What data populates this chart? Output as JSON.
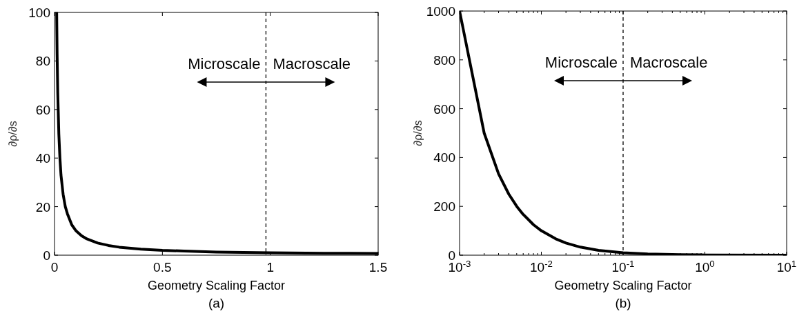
{
  "chart_data": [
    {
      "type": "line",
      "xlabel": "Geometry Scaling Factor",
      "ylabel": "∂ρ/∂s",
      "annotations": [
        "Microscale",
        "Macroscale",
        "(a)"
      ],
      "x": [
        0.01,
        0.012,
        0.015,
        0.02,
        0.025,
        0.03,
        0.04,
        0.05,
        0.06,
        0.08,
        0.1,
        0.125,
        0.15,
        0.2,
        0.25,
        0.3,
        0.4,
        0.5,
        0.6,
        0.75,
        1,
        1.25,
        1.5
      ],
      "series": [
        {
          "color": "#000000",
          "values": [
            100,
            83,
            67,
            50,
            40,
            33,
            25,
            20,
            17,
            12.5,
            10,
            8,
            6.7,
            5,
            4,
            3.3,
            2.5,
            2,
            1.7,
            1.3,
            1,
            0.8,
            0.7
          ]
        }
      ],
      "xlim": [
        0,
        1.5
      ],
      "xticks": [
        0,
        0.5,
        1,
        1.5
      ],
      "ylim": [
        0,
        100
      ],
      "yticks": [
        0,
        20,
        40,
        60,
        80,
        100
      ],
      "ref_lines": [
        {
          "axis": "x",
          "value": 0.98,
          "color": "#000000",
          "line_style": "dashed"
        }
      ],
      "grid": false,
      "marker": "none",
      "line_style": "solid"
    },
    {
      "type": "line",
      "xlabel": "Geometry Scaling Factor",
      "ylabel": "∂ρ/∂s",
      "annotations": [
        "Microscale",
        "Macroscale",
        "(b)"
      ],
      "log": "x",
      "x": [
        0.001,
        0.002,
        0.003,
        0.004,
        0.005,
        0.006,
        0.008,
        0.01,
        0.015,
        0.02,
        0.03,
        0.05,
        0.1,
        0.2,
        0.5,
        1,
        10
      ],
      "series": [
        {
          "color": "#000000",
          "values": [
            1000,
            500,
            333,
            250,
            200,
            167,
            125,
            100,
            67,
            50,
            33,
            20,
            10,
            5,
            2,
            1,
            0
          ]
        }
      ],
      "xlim": [
        0.001,
        10
      ],
      "xticks": [
        {
          "value": 0.001,
          "label": "10$^{-3}$"
        },
        {
          "value": 0.002,
          "label": null
        },
        {
          "value": 0.003,
          "label": null
        },
        {
          "value": 0.004,
          "label": null
        },
        {
          "value": 0.005,
          "label": null
        },
        {
          "value": 0.006,
          "label": null
        },
        {
          "value": 0.007,
          "label": null
        },
        {
          "value": 0.008,
          "label": null
        },
        {
          "value": 0.009,
          "label": null
        },
        {
          "value": 0.01,
          "label": "10$^{-2}$"
        },
        {
          "value": 0.02,
          "label": null
        },
        {
          "value": 0.03,
          "label": null
        },
        {
          "value": 0.04,
          "label": null
        },
        {
          "value": 0.05,
          "label": null
        },
        {
          "value": 0.06,
          "label": null
        },
        {
          "value": 0.07,
          "label": null
        },
        {
          "value": 0.08,
          "label": null
        },
        {
          "value": 0.09,
          "label": null
        },
        {
          "value": 0.1,
          "label": "10$^{-1}$"
        },
        {
          "value": 0.2,
          "label": null
        },
        {
          "value": 0.3,
          "label": null
        },
        {
          "value": 0.4,
          "label": null
        },
        {
          "value": 0.5,
          "label": null
        },
        {
          "value": 0.6,
          "label": null
        },
        {
          "value": 0.7,
          "label": null
        },
        {
          "value": 0.8,
          "label": null
        },
        {
          "value": 0.9,
          "label": null
        },
        {
          "value": 1,
          "label": "10$^{0}$"
        },
        {
          "value": 2,
          "label": null
        },
        {
          "value": 3,
          "label": null
        },
        {
          "value": 4,
          "label": null
        },
        {
          "value": 5,
          "label": null
        },
        {
          "value": 6,
          "label": null
        },
        {
          "value": 7,
          "label": null
        },
        {
          "value": 8,
          "label": null
        },
        {
          "value": 9,
          "label": null
        },
        {
          "value": 10,
          "label": "10$^{1}$"
        }
      ],
      "ylim": [
        0,
        1000
      ],
      "yticks": [
        0,
        200,
        400,
        600,
        800,
        1000
      ],
      "ref_lines": [
        {
          "axis": "x",
          "value": 0.1,
          "color": "#000000",
          "line_style": "dashed"
        }
      ],
      "grid": false,
      "marker": "none",
      "line_style": "solid"
    }
  ]
}
